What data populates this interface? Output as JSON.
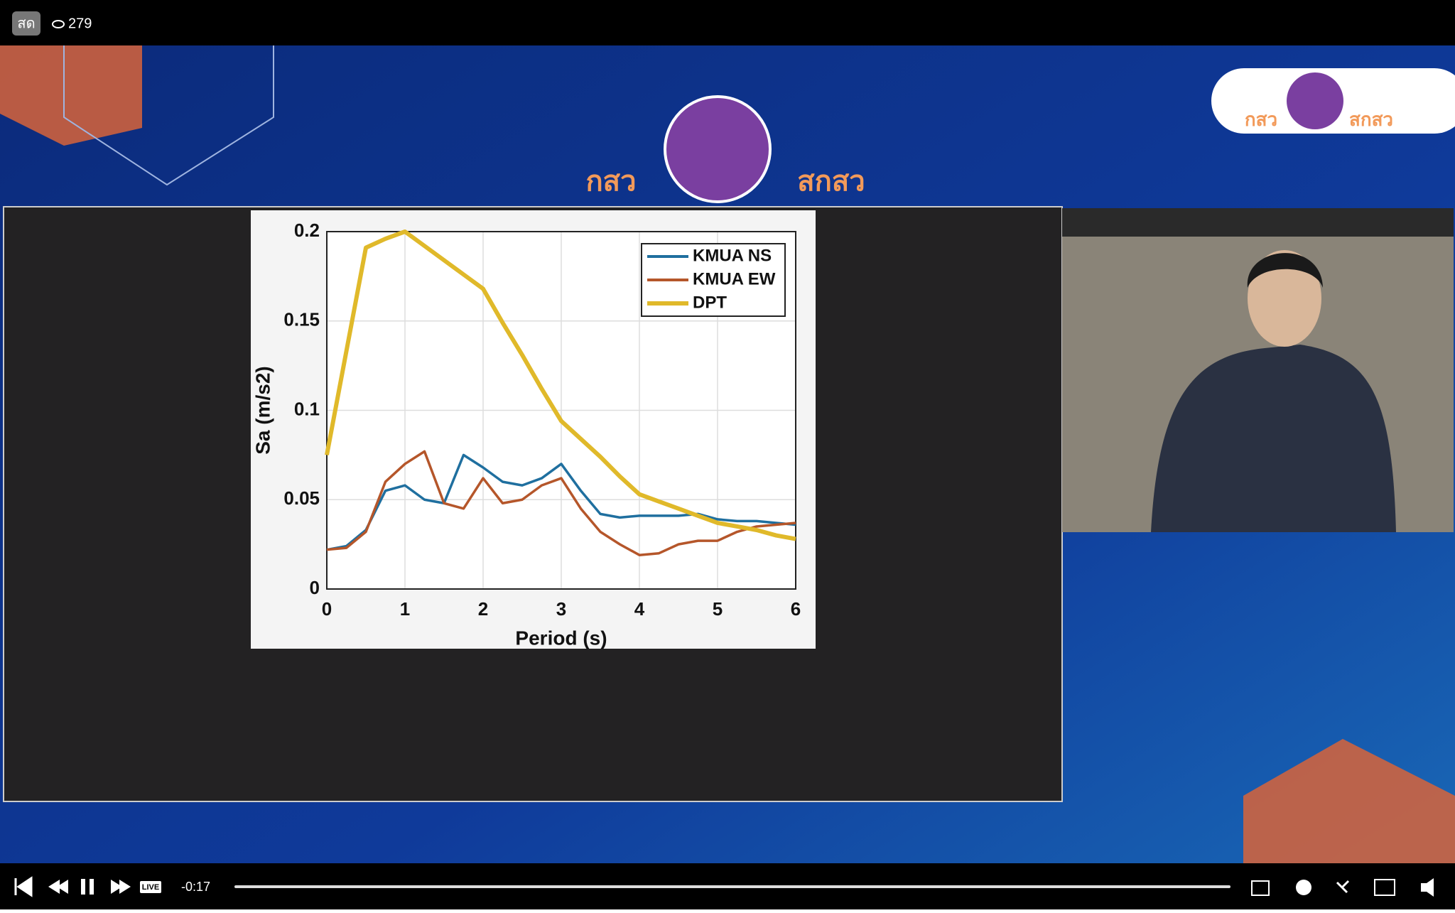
{
  "player": {
    "live_badge": "สด",
    "viewers": "279",
    "live_label": "LIVE",
    "time": "-0:17"
  },
  "logos": {
    "left": "กสว",
    "right": "สกสว"
  },
  "chart_data": {
    "type": "line",
    "xlabel": "Period (s)",
    "ylabel": "Sa (m/s2)",
    "x": [
      0,
      0.25,
      0.5,
      0.75,
      1,
      1.25,
      1.5,
      1.75,
      2,
      2.25,
      2.5,
      2.75,
      3,
      3.25,
      3.5,
      3.75,
      4,
      4.25,
      4.5,
      4.75,
      5,
      5.25,
      5.5,
      5.75,
      6
    ],
    "series": [
      {
        "name": "KMUA NS",
        "color": "#1f6f9f",
        "values": [
          0.022,
          0.024,
          0.033,
          0.055,
          0.058,
          0.05,
          0.048,
          0.075,
          0.068,
          0.06,
          0.058,
          0.062,
          0.07,
          0.055,
          0.042,
          0.04,
          0.041,
          0.041,
          0.041,
          0.042,
          0.039,
          0.038,
          0.038,
          0.037,
          0.036
        ]
      },
      {
        "name": "KMUA EW",
        "color": "#b5562a",
        "values": [
          0.022,
          0.023,
          0.032,
          0.06,
          0.07,
          0.077,
          0.048,
          0.045,
          0.062,
          0.048,
          0.05,
          0.058,
          0.062,
          0.045,
          0.032,
          0.025,
          0.019,
          0.02,
          0.025,
          0.027,
          0.027,
          0.032,
          0.035,
          0.036,
          0.037
        ]
      },
      {
        "name": "DPT",
        "color": "#e0b92a",
        "values": [
          0.075,
          0.133,
          0.191,
          0.196,
          0.2,
          0.192,
          0.184,
          0.176,
          0.168,
          0.149,
          0.131,
          0.112,
          0.094,
          0.084,
          0.074,
          0.063,
          0.053,
          0.049,
          0.045,
          0.041,
          0.037,
          0.035,
          0.033,
          0.03,
          0.028
        ]
      }
    ],
    "xlim": [
      0,
      6
    ],
    "xticks": [
      0,
      1,
      2,
      3,
      4,
      5,
      6
    ],
    "ylim": [
      0,
      0.2
    ],
    "yticks": [
      0,
      0.05,
      0.1,
      0.15,
      0.2
    ],
    "grid": true,
    "legend": "upper right"
  }
}
